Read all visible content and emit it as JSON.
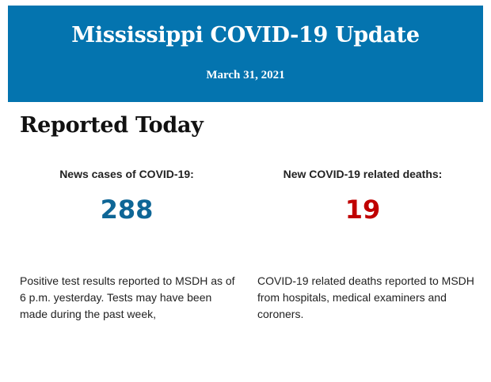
{
  "header": {
    "title": "Mississippi COVID-19 Update",
    "date": "March 31, 2021",
    "color": "#0474af"
  },
  "section_title": "Reported Today",
  "stats": [
    {
      "label": "News cases of COVID-19:",
      "value": "288",
      "color": "#0e6696",
      "description": "Positive test results reported to MSDH as of 6 p.m. yesterday. Tests may have been made during the past week,"
    },
    {
      "label": "New COVID-19 related deaths:",
      "value": "19",
      "color": "#c00000",
      "description": "COVID-19 related deaths reported to MSDH from hospitals, medical examiners and coroners."
    }
  ]
}
